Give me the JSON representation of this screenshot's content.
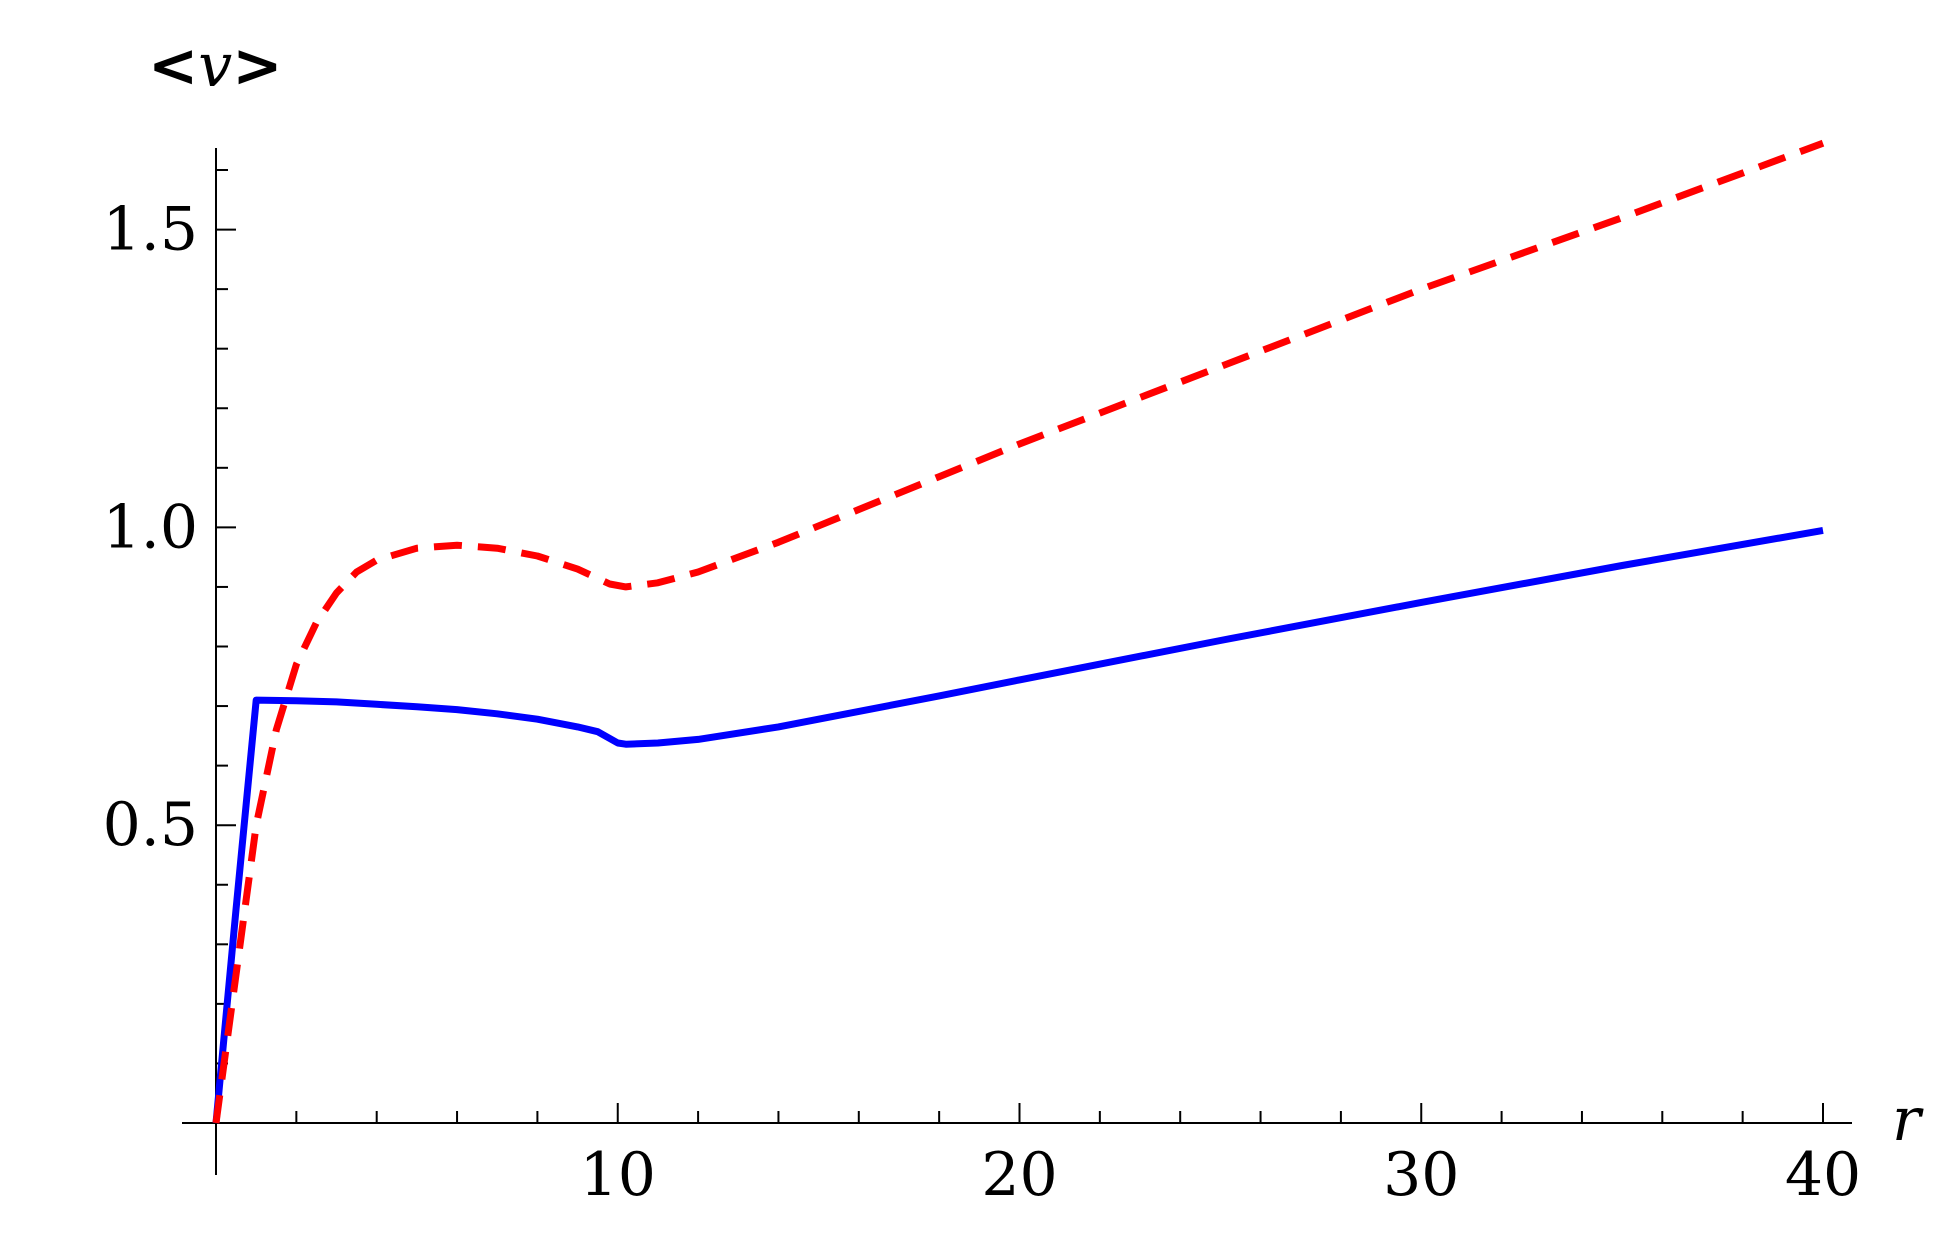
{
  "chart_data": {
    "type": "line",
    "title": "",
    "xlabel": "r",
    "ylabel_parts": {
      "open": "<",
      "var": "v",
      "close": ">"
    },
    "xlim": [
      0,
      40
    ],
    "ylim": [
      0,
      1.6
    ],
    "x_ticks": [
      10,
      20,
      30,
      40
    ],
    "x_tick_labels": [
      "10",
      "20",
      "30",
      "40"
    ],
    "y_ticks": [
      0.5,
      1.0,
      1.5
    ],
    "y_tick_labels": [
      "0.5",
      "1.0",
      "1.5"
    ],
    "x_minor_step": 2,
    "y_minor_step": 0.1,
    "grid": false,
    "legend": "none",
    "series": [
      {
        "color": "#0000ff",
        "style": "solid",
        "x": [
          0,
          0.5,
          1.0,
          2,
          3,
          4,
          5,
          6,
          7,
          8,
          9,
          9.5,
          10,
          10.2,
          11,
          12,
          14,
          16,
          18,
          20,
          25,
          30,
          35,
          40
        ],
        "y": [
          0,
          0.36,
          0.71,
          0.709,
          0.707,
          0.703,
          0.699,
          0.694,
          0.687,
          0.678,
          0.665,
          0.657,
          0.638,
          0.636,
          0.638,
          0.644,
          0.665,
          0.691,
          0.717,
          0.744,
          0.81,
          0.874,
          0.936,
          0.995
        ]
      },
      {
        "color": "#ff0000",
        "style": "dashed",
        "x": [
          0,
          0.5,
          1.0,
          1.5,
          2,
          2.5,
          3,
          3.5,
          4,
          5,
          6,
          7,
          8,
          9,
          9.8,
          10.2,
          11,
          12,
          14,
          16,
          18,
          20,
          25,
          30,
          35,
          40
        ],
        "y": [
          0,
          0.25,
          0.5,
          0.66,
          0.77,
          0.84,
          0.89,
          0.925,
          0.945,
          0.965,
          0.97,
          0.965,
          0.952,
          0.93,
          0.905,
          0.9,
          0.907,
          0.925,
          0.975,
          1.03,
          1.085,
          1.14,
          1.27,
          1.4,
          1.52,
          1.645
        ]
      }
    ]
  }
}
